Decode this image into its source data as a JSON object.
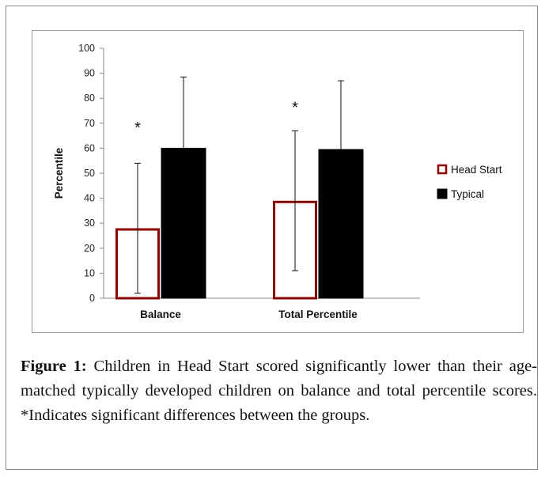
{
  "chart_data": {
    "type": "bar",
    "title": "",
    "xlabel": "",
    "ylabel": "Percentile",
    "ylim": [
      0,
      100
    ],
    "yticks": [
      0,
      10,
      20,
      30,
      40,
      50,
      60,
      70,
      80,
      90,
      100
    ],
    "grid": false,
    "categories": [
      "Balance",
      "Total Percentile"
    ],
    "series": [
      {
        "name": "Head Start",
        "color": "#8b0000",
        "fill": "#ffffff",
        "values": [
          28,
          39
        ],
        "error_low": [
          2,
          11
        ],
        "error_high": [
          54,
          67
        ]
      },
      {
        "name": "Typical",
        "color": "#000000",
        "fill": "#000000",
        "values": [
          60,
          59.5
        ],
        "error_low": [
          60,
          59.5
        ],
        "error_high": [
          88.5,
          87
        ]
      }
    ],
    "significance_marker": "*",
    "significance_values": [
      70,
      78
    ],
    "legend_position": "right"
  },
  "caption": {
    "label": "Figure 1:",
    "text": " Children in Head Start scored significantly lower than their age-matched typically developed children on balance and total percentile scores. *Indicates significant differences between the groups."
  }
}
